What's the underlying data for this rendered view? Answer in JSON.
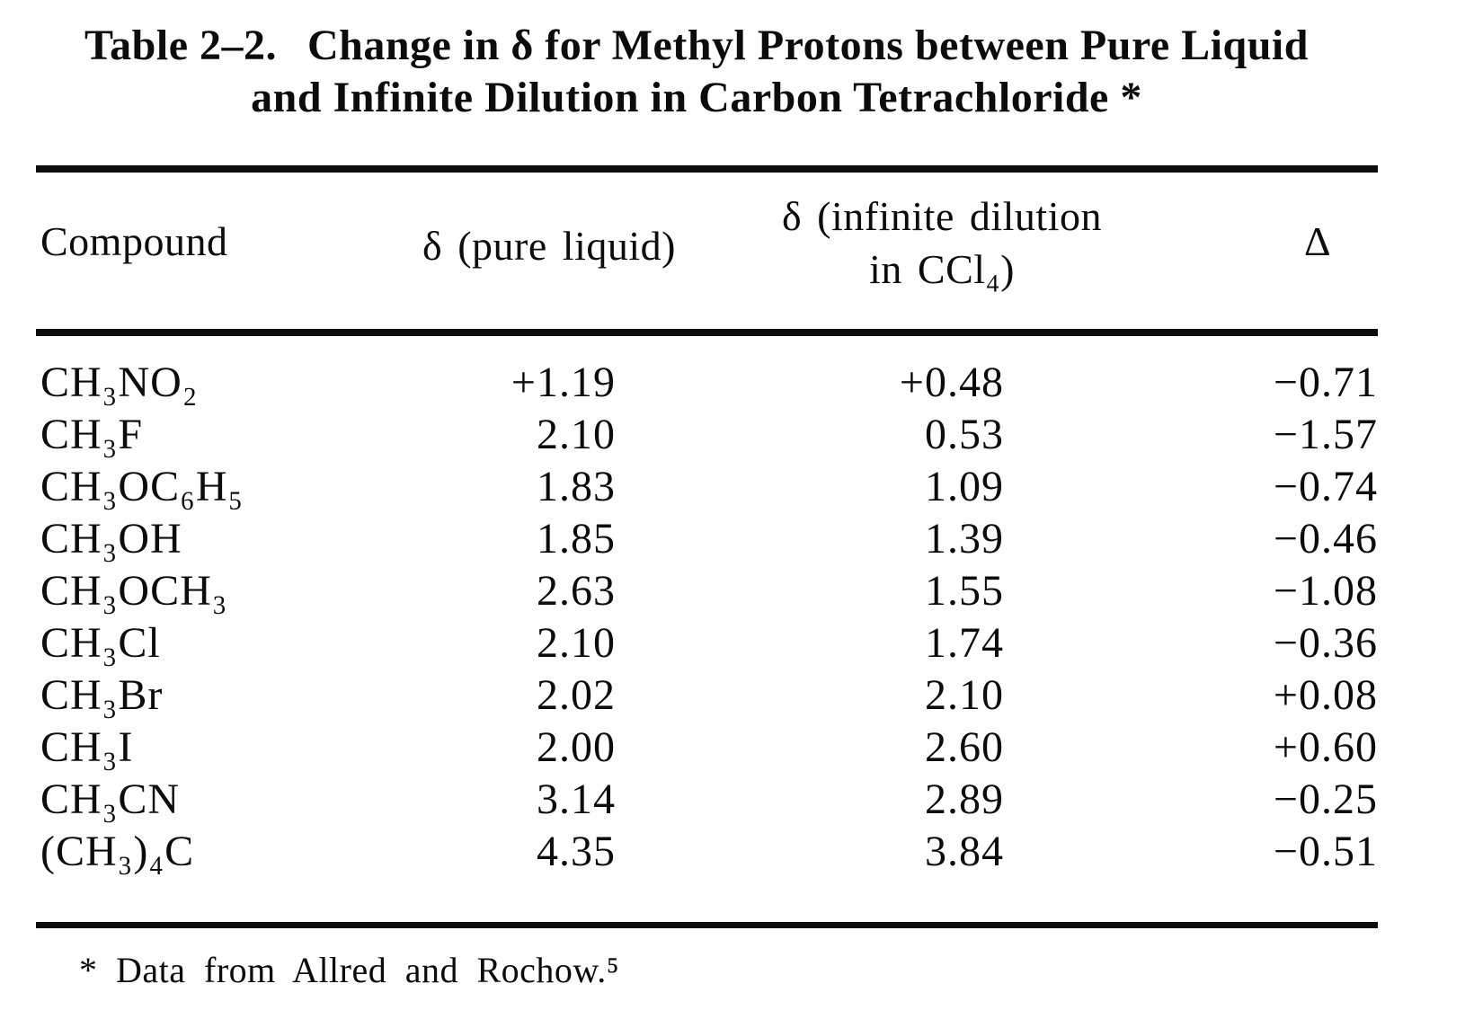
{
  "title": {
    "label": "Table 2–2.",
    "line1": "Change in δ for Methyl Protons between Pure Liquid",
    "line2": "and Infinite Dilution in Carbon Tetrachloride *"
  },
  "table": {
    "headers": {
      "compound": "Compound",
      "pure_liquid": "δ (pure liquid)",
      "infinite_dilution_line1": "δ (infinite dilution",
      "infinite_dilution_line2": "in CCl₄)",
      "delta": "Δ"
    },
    "rows": [
      {
        "compound": "CH₃NO₂",
        "pure_liquid": "+1.19",
        "infinite_dilution": "+0.48",
        "delta": "−0.71"
      },
      {
        "compound": "CH₃F",
        "pure_liquid": "2.10",
        "infinite_dilution": "0.53",
        "delta": "−1.57"
      },
      {
        "compound": "CH₃OC₆H₅",
        "pure_liquid": "1.83",
        "infinite_dilution": "1.09",
        "delta": "−0.74"
      },
      {
        "compound": "CH₃OH",
        "pure_liquid": "1.85",
        "infinite_dilution": "1.39",
        "delta": "−0.46"
      },
      {
        "compound": "CH₃OCH₃",
        "pure_liquid": "2.63",
        "infinite_dilution": "1.55",
        "delta": "−1.08"
      },
      {
        "compound": "CH₃Cl",
        "pure_liquid": "2.10",
        "infinite_dilution": "1.74",
        "delta": "−0.36"
      },
      {
        "compound": "CH₃Br",
        "pure_liquid": "2.02",
        "infinite_dilution": "2.10",
        "delta": "+0.08"
      },
      {
        "compound": "CH₃I",
        "pure_liquid": "2.00",
        "infinite_dilution": "2.60",
        "delta": "+0.60"
      },
      {
        "compound": "CH₃CN",
        "pure_liquid": "3.14",
        "infinite_dilution": "2.89",
        "delta": "−0.25"
      },
      {
        "compound": "(CH₃)₄C",
        "pure_liquid": "4.35",
        "infinite_dilution": "3.84",
        "delta": "−0.51"
      }
    ],
    "footnote": "* Data from Allred and Rochow.⁵"
  },
  "chart_data": {
    "type": "table",
    "title": "Table 2–2. Change in δ for Methyl Protons between Pure Liquid and Infinite Dilution in Carbon Tetrachloride",
    "columns": [
      "Compound",
      "δ (pure liquid)",
      "δ (infinite dilution in CCl₄)",
      "Δ"
    ],
    "rows": [
      [
        "CH₃NO₂",
        1.19,
        0.48,
        -0.71
      ],
      [
        "CH₃F",
        2.1,
        0.53,
        -1.57
      ],
      [
        "CH₃OC₆H₅",
        1.83,
        1.09,
        -0.74
      ],
      [
        "CH₃OH",
        1.85,
        1.39,
        -0.46
      ],
      [
        "CH₃OCH₃",
        2.63,
        1.55,
        -1.08
      ],
      [
        "CH₃Cl",
        2.1,
        1.74,
        -0.36
      ],
      [
        "CH₃Br",
        2.02,
        2.1,
        0.08
      ],
      [
        "CH₃I",
        2.0,
        2.6,
        0.6
      ],
      [
        "CH₃CN",
        3.14,
        2.89,
        -0.25
      ],
      [
        "(CH₃)₄C",
        4.35,
        3.84,
        -0.51
      ]
    ],
    "footnote": "* Data from Allred and Rochow.⁵"
  },
  "colors": {
    "text": "#0c0c0c",
    "background": "#ffffff",
    "rule": "#0c0c0c"
  }
}
